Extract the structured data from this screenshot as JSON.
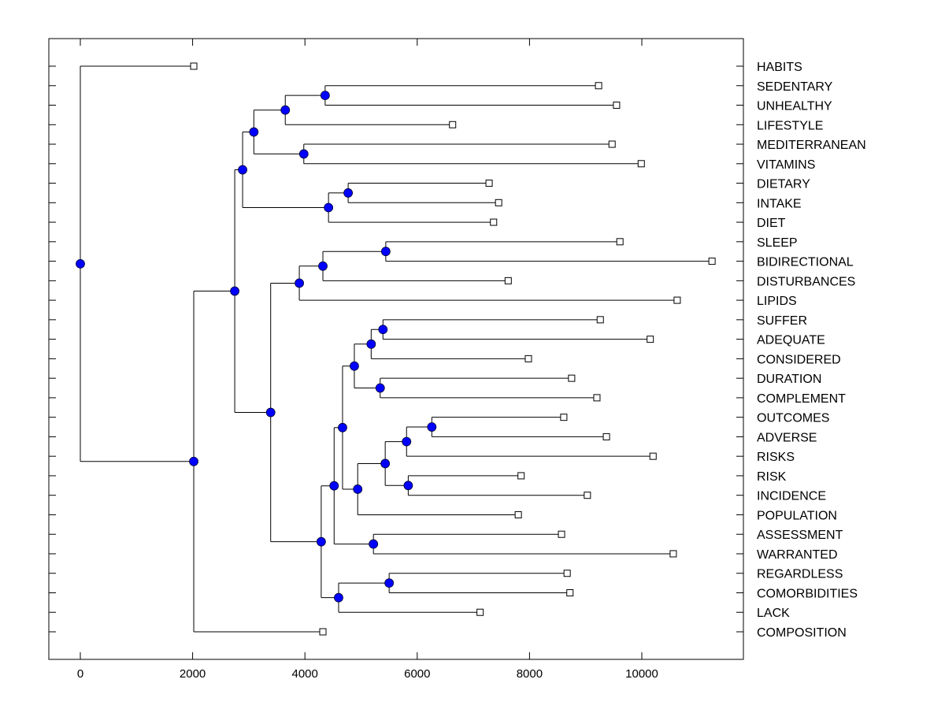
{
  "chart_data": {
    "type": "dendrogram",
    "title": "",
    "xlabel": "",
    "ylabel": "",
    "xlim": [
      -560,
      11800
    ],
    "xticks": [
      0,
      2000,
      4000,
      6000,
      8000,
      10000
    ],
    "xtick_labels": [
      "0",
      "2000",
      "4000",
      "6000",
      "8000",
      "10000"
    ],
    "grid": false,
    "node_color": "#0000ff",
    "leaf_marker": "open-square",
    "leaves": [
      {
        "label": "HABITS",
        "x": 2020
      },
      {
        "label": "SEDENTARY",
        "x": 9230
      },
      {
        "label": "UNHEALTHY",
        "x": 9550
      },
      {
        "label": "LIFESTYLE",
        "x": 6630
      },
      {
        "label": "MEDITERRANEAN",
        "x": 9470
      },
      {
        "label": "VITAMINS",
        "x": 9990
      },
      {
        "label": "DIETARY",
        "x": 7280
      },
      {
        "label": "INTAKE",
        "x": 7450
      },
      {
        "label": "DIET",
        "x": 7360
      },
      {
        "label": "SLEEP",
        "x": 9610
      },
      {
        "label": "BIDIRECTIONAL",
        "x": 11250
      },
      {
        "label": "DISTURBANCES",
        "x": 7620
      },
      {
        "label": "LIPIDS",
        "x": 10630
      },
      {
        "label": "SUFFER",
        "x": 9260
      },
      {
        "label": "ADEQUATE",
        "x": 10150
      },
      {
        "label": "CONSIDERED",
        "x": 7980
      },
      {
        "label": "DURATION",
        "x": 8750
      },
      {
        "label": "COMPLEMENT",
        "x": 9200
      },
      {
        "label": "OUTCOMES",
        "x": 8610
      },
      {
        "label": "ADVERSE",
        "x": 9370
      },
      {
        "label": "RISKS",
        "x": 10200
      },
      {
        "label": "RISK",
        "x": 7850
      },
      {
        "label": "INCIDENCE",
        "x": 9030
      },
      {
        "label": "POPULATION",
        "x": 7800
      },
      {
        "label": "ASSESSMENT",
        "x": 8570
      },
      {
        "label": "WARRANTED",
        "x": 10560
      },
      {
        "label": "REGARDLESS",
        "x": 8670
      },
      {
        "label": "COMORBIDITIES",
        "x": 8720
      },
      {
        "label": "LACK",
        "x": 7120
      },
      {
        "label": "COMPOSITION",
        "x": 4320
      }
    ],
    "nodes": [
      {
        "id": "n_sed_unh",
        "x": 4360,
        "children": [
          "L1",
          "L2"
        ]
      },
      {
        "id": "n_lifestyle",
        "x": 3650,
        "children": [
          "n_sed_unh",
          "L3"
        ]
      },
      {
        "id": "n_med_vit",
        "x": 3980,
        "children": [
          "L4",
          "L5"
        ]
      },
      {
        "id": "n_habits_grp",
        "x": 3090,
        "children": [
          "n_lifestyle",
          "n_med_vit"
        ]
      },
      {
        "id": "n_diet_intake",
        "x": 4770,
        "children": [
          "L6",
          "L7"
        ]
      },
      {
        "id": "n_diet",
        "x": 4420,
        "children": [
          "n_diet_intake",
          "L8"
        ]
      },
      {
        "id": "n_top",
        "x": 2890,
        "children": [
          "n_habits_grp",
          "n_diet"
        ]
      },
      {
        "id": "n_sleep_bidir",
        "x": 5440,
        "children": [
          "L9",
          "L10"
        ]
      },
      {
        "id": "n_sleep",
        "x": 4320,
        "children": [
          "n_sleep_bidir",
          "L11"
        ]
      },
      {
        "id": "n_lipids",
        "x": 3900,
        "children": [
          "n_sleep",
          "L12"
        ]
      },
      {
        "id": "n_suffer_adeq",
        "x": 5390,
        "children": [
          "L13",
          "L14"
        ]
      },
      {
        "id": "n_considered",
        "x": 5180,
        "children": [
          "n_suffer_adeq",
          "L15"
        ]
      },
      {
        "id": "n_dur_comp",
        "x": 5340,
        "children": [
          "L16",
          "L17"
        ]
      },
      {
        "id": "n_suffer_grp",
        "x": 4880,
        "children": [
          "n_considered",
          "n_dur_comp"
        ]
      },
      {
        "id": "n_out_adv",
        "x": 6260,
        "children": [
          "L18",
          "L19"
        ]
      },
      {
        "id": "n_risks",
        "x": 5810,
        "children": [
          "n_out_adv",
          "L20"
        ]
      },
      {
        "id": "n_risk_inc",
        "x": 5840,
        "children": [
          "L21",
          "L22"
        ]
      },
      {
        "id": "n_risk_grp",
        "x": 5430,
        "children": [
          "n_risks",
          "n_risk_inc"
        ]
      },
      {
        "id": "n_population",
        "x": 4940,
        "children": [
          "n_risk_grp",
          "L23"
        ]
      },
      {
        "id": "n_mid",
        "x": 4670,
        "children": [
          "n_suffer_grp",
          "n_population"
        ]
      },
      {
        "id": "n_assess_warr",
        "x": 5220,
        "children": [
          "L24",
          "L25"
        ]
      },
      {
        "id": "n_mid2",
        "x": 4520,
        "children": [
          "n_mid",
          "n_assess_warr"
        ]
      },
      {
        "id": "n_reg_comorb",
        "x": 5500,
        "children": [
          "L26",
          "L27"
        ]
      },
      {
        "id": "n_lack",
        "x": 4600,
        "children": [
          "n_reg_comorb",
          "L28"
        ]
      },
      {
        "id": "n_lower",
        "x": 4290,
        "children": [
          "n_mid2",
          "n_lack"
        ]
      },
      {
        "id": "n_sleep_lower",
        "x": 3390,
        "children": [
          "n_lipids",
          "n_lower"
        ]
      },
      {
        "id": "n_main",
        "x": 2750,
        "children": [
          "n_top",
          "n_sleep_lower"
        ]
      },
      {
        "id": "n_composition",
        "x": 2020,
        "children": [
          "n_main",
          "L29"
        ]
      },
      {
        "id": "n_root",
        "x": 0,
        "children": [
          "L0",
          "n_composition"
        ]
      }
    ]
  }
}
